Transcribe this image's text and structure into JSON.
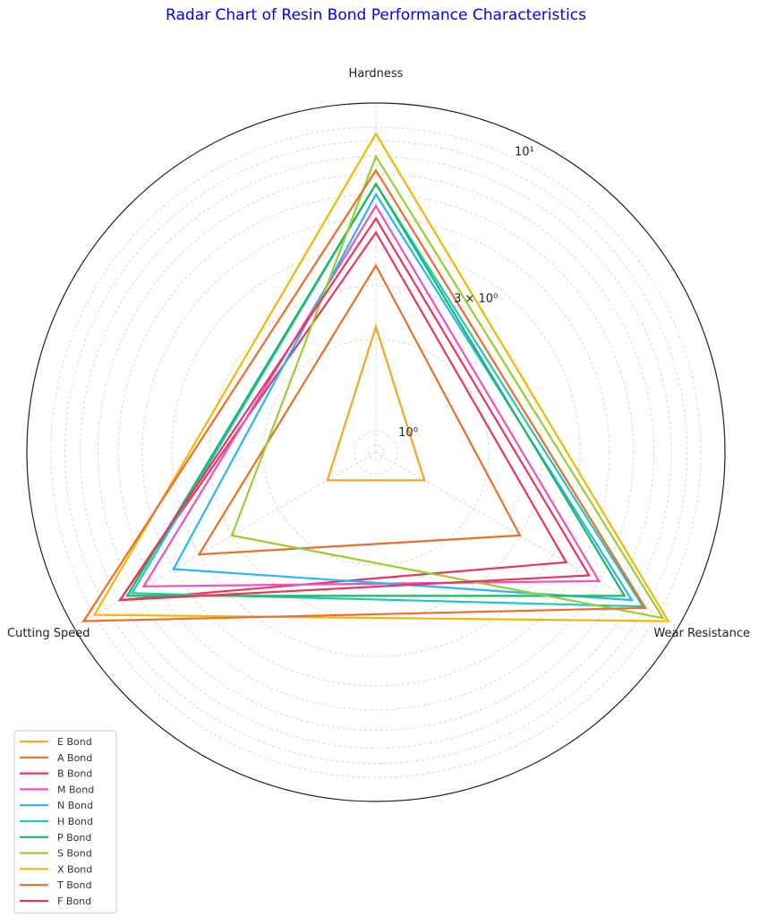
{
  "chart_data": {
    "type": "radar",
    "title": "Radar Chart of Resin Bond Performance Characteristics",
    "axes": [
      "Hardness",
      "Wear Resistance",
      "Cutting Speed"
    ],
    "scale": "log",
    "rlim": [
      0.85,
      12
    ],
    "r_ticks": [
      {
        "value": 1,
        "label": "10⁰"
      },
      {
        "value": 3,
        "label": "3 × 10⁰"
      },
      {
        "value": 10,
        "label": "10¹"
      }
    ],
    "grid": true,
    "legend_position": "bottom-left",
    "series": [
      {
        "name": "E Bond",
        "color": "#f5a623",
        "values": [
          2.2,
          1.3,
          1.3
        ]
      },
      {
        "name": "A Bond",
        "color": "#e8702a",
        "values": [
          3.5,
          3.0,
          4.0
        ]
      },
      {
        "name": "B Bond",
        "color": "#e8365d",
        "values": [
          4.5,
          4.5,
          8.0
        ]
      },
      {
        "name": "M Bond",
        "color": "#f050c0",
        "values": [
          5.5,
          6.0,
          6.5
        ]
      },
      {
        "name": "N Bond",
        "color": "#29b6f6",
        "values": [
          6.0,
          8.0,
          5.0
        ]
      },
      {
        "name": "H Bond",
        "color": "#1ec8c0",
        "values": [
          6.5,
          8.8,
          7.2
        ]
      },
      {
        "name": "P Bond",
        "color": "#1cb860",
        "values": [
          6.5,
          7.5,
          7.5
        ]
      },
      {
        "name": "S Bond",
        "color": "#9acd32",
        "values": [
          8.0,
          10.5,
          3.0
        ]
      },
      {
        "name": "X Bond",
        "color": "#f5b800",
        "values": [
          9.5,
          11.0,
          10.0
        ]
      },
      {
        "name": "T Bond",
        "color": "#ef6c2a",
        "values": [
          7.2,
          9.0,
          11.0
        ]
      },
      {
        "name": "F Bond",
        "color": "#e8365d",
        "values": [
          5.0,
          5.5,
          8.0
        ]
      }
    ]
  }
}
